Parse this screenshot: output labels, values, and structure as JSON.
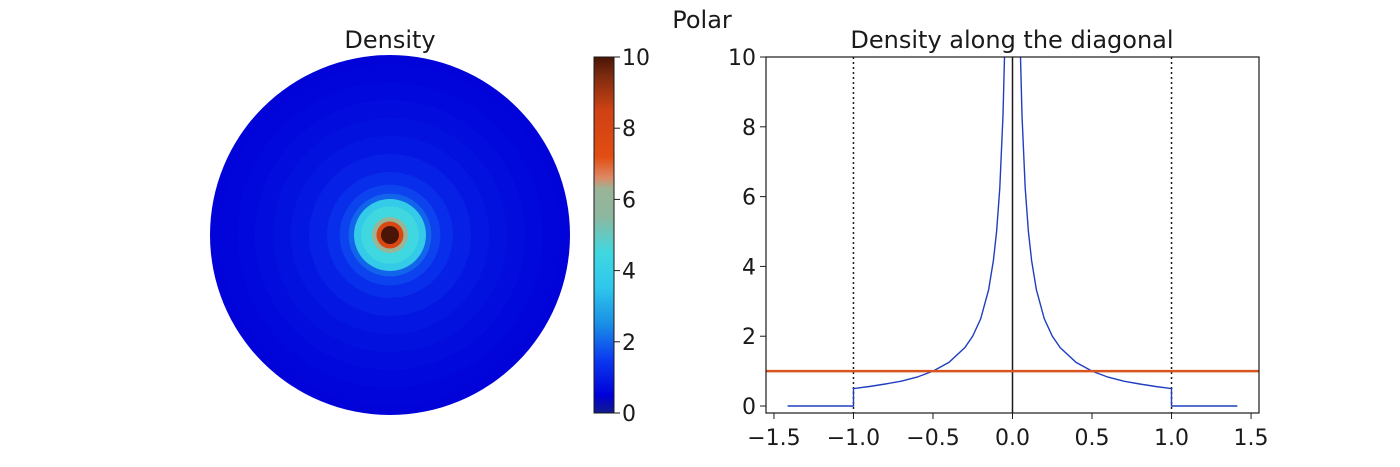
{
  "suptitle": "Polar",
  "chart_data": [
    {
      "type": "heatmap",
      "title": "Density",
      "shape": "disk",
      "description_levels": [
        {
          "r": 1.0,
          "value": 0.55
        },
        {
          "r": 0.95,
          "value": 0.58
        },
        {
          "r": 0.85,
          "value": 0.64
        },
        {
          "r": 0.75,
          "value": 0.72
        },
        {
          "r": 0.65,
          "value": 0.8
        },
        {
          "r": 0.55,
          "value": 0.9
        },
        {
          "r": 0.45,
          "value": 1.05
        },
        {
          "r": 0.35,
          "value": 1.3
        },
        {
          "r": 0.28,
          "value": 1.6
        },
        {
          "r": 0.23,
          "value": 2.0
        },
        {
          "r": 0.2,
          "value": 3.8
        },
        {
          "r": 0.16,
          "value": 4.5
        },
        {
          "r": 0.1,
          "value": 6.3
        },
        {
          "r": 0.075,
          "value": 7.8
        },
        {
          "r": 0.05,
          "value": 10.5
        }
      ],
      "colorbar": {
        "min": 0,
        "max": 10,
        "ticks": [
          "0",
          "2",
          "4",
          "6",
          "8",
          "10"
        ],
        "stops": [
          {
            "v": 0,
            "color": "#111b8a"
          },
          {
            "v": 0.5,
            "color": "#0000d8"
          },
          {
            "v": 1.5,
            "color": "#0a3af0"
          },
          {
            "v": 2.5,
            "color": "#1a8fe6"
          },
          {
            "v": 3.5,
            "color": "#2ec6ec"
          },
          {
            "v": 4.5,
            "color": "#3fd8e0"
          },
          {
            "v": 5.5,
            "color": "#8cb8a0"
          },
          {
            "v": 6.3,
            "color": "#9ab496"
          },
          {
            "v": 6.6,
            "color": "#dd8a66"
          },
          {
            "v": 7.2,
            "color": "#e24d12"
          },
          {
            "v": 8.5,
            "color": "#cf4214"
          },
          {
            "v": 9.5,
            "color": "#7a2a10"
          },
          {
            "v": 10,
            "color": "#4a1406"
          }
        ]
      }
    },
    {
      "type": "line",
      "title": "Density along the diagonal",
      "xlim": [
        -1.55,
        1.55
      ],
      "ylim": [
        -0.2,
        10
      ],
      "xticks": [
        "−1.5",
        "−1.0",
        "−0.5",
        "0.0",
        "0.5",
        "1.0",
        "1.5"
      ],
      "yticks": [
        "0",
        "2",
        "4",
        "6",
        "8",
        "10"
      ],
      "grid": false,
      "series": [
        {
          "color": "#1f3fbf",
          "x": [
            -1.414,
            -1.0,
            -1.0,
            -0.9,
            -0.8,
            -0.7,
            -0.6,
            -0.5,
            -0.4,
            -0.3,
            -0.25,
            -0.2,
            -0.15,
            -0.12,
            -0.1,
            -0.08,
            -0.06,
            -0.05,
            -0.045,
            0.045,
            0.05,
            0.06,
            0.08,
            0.1,
            0.12,
            0.15,
            0.2,
            0.25,
            0.3,
            0.4,
            0.5,
            0.6,
            0.7,
            0.8,
            0.9,
            1.0,
            1.0,
            1.414
          ],
          "y": [
            0.0,
            0.0,
            0.5,
            0.56,
            0.63,
            0.71,
            0.83,
            1.0,
            1.25,
            1.67,
            2.0,
            2.5,
            3.33,
            4.17,
            5.0,
            6.25,
            8.33,
            10.0,
            11.1,
            11.1,
            10.0,
            8.33,
            6.25,
            5.0,
            4.17,
            3.33,
            2.5,
            2.0,
            1.67,
            1.25,
            1.0,
            0.83,
            0.71,
            0.63,
            0.56,
            0.5,
            0.0,
            0.0
          ]
        },
        {
          "color": "#d9541e",
          "x": [
            -1.55,
            1.55
          ],
          "y": [
            1.0,
            1.0
          ]
        }
      ],
      "vlines": [
        {
          "x": -1.0,
          "style": "dotted"
        },
        {
          "x": 0.0,
          "style": "solid"
        },
        {
          "x": 1.0,
          "style": "dotted"
        }
      ]
    }
  ]
}
